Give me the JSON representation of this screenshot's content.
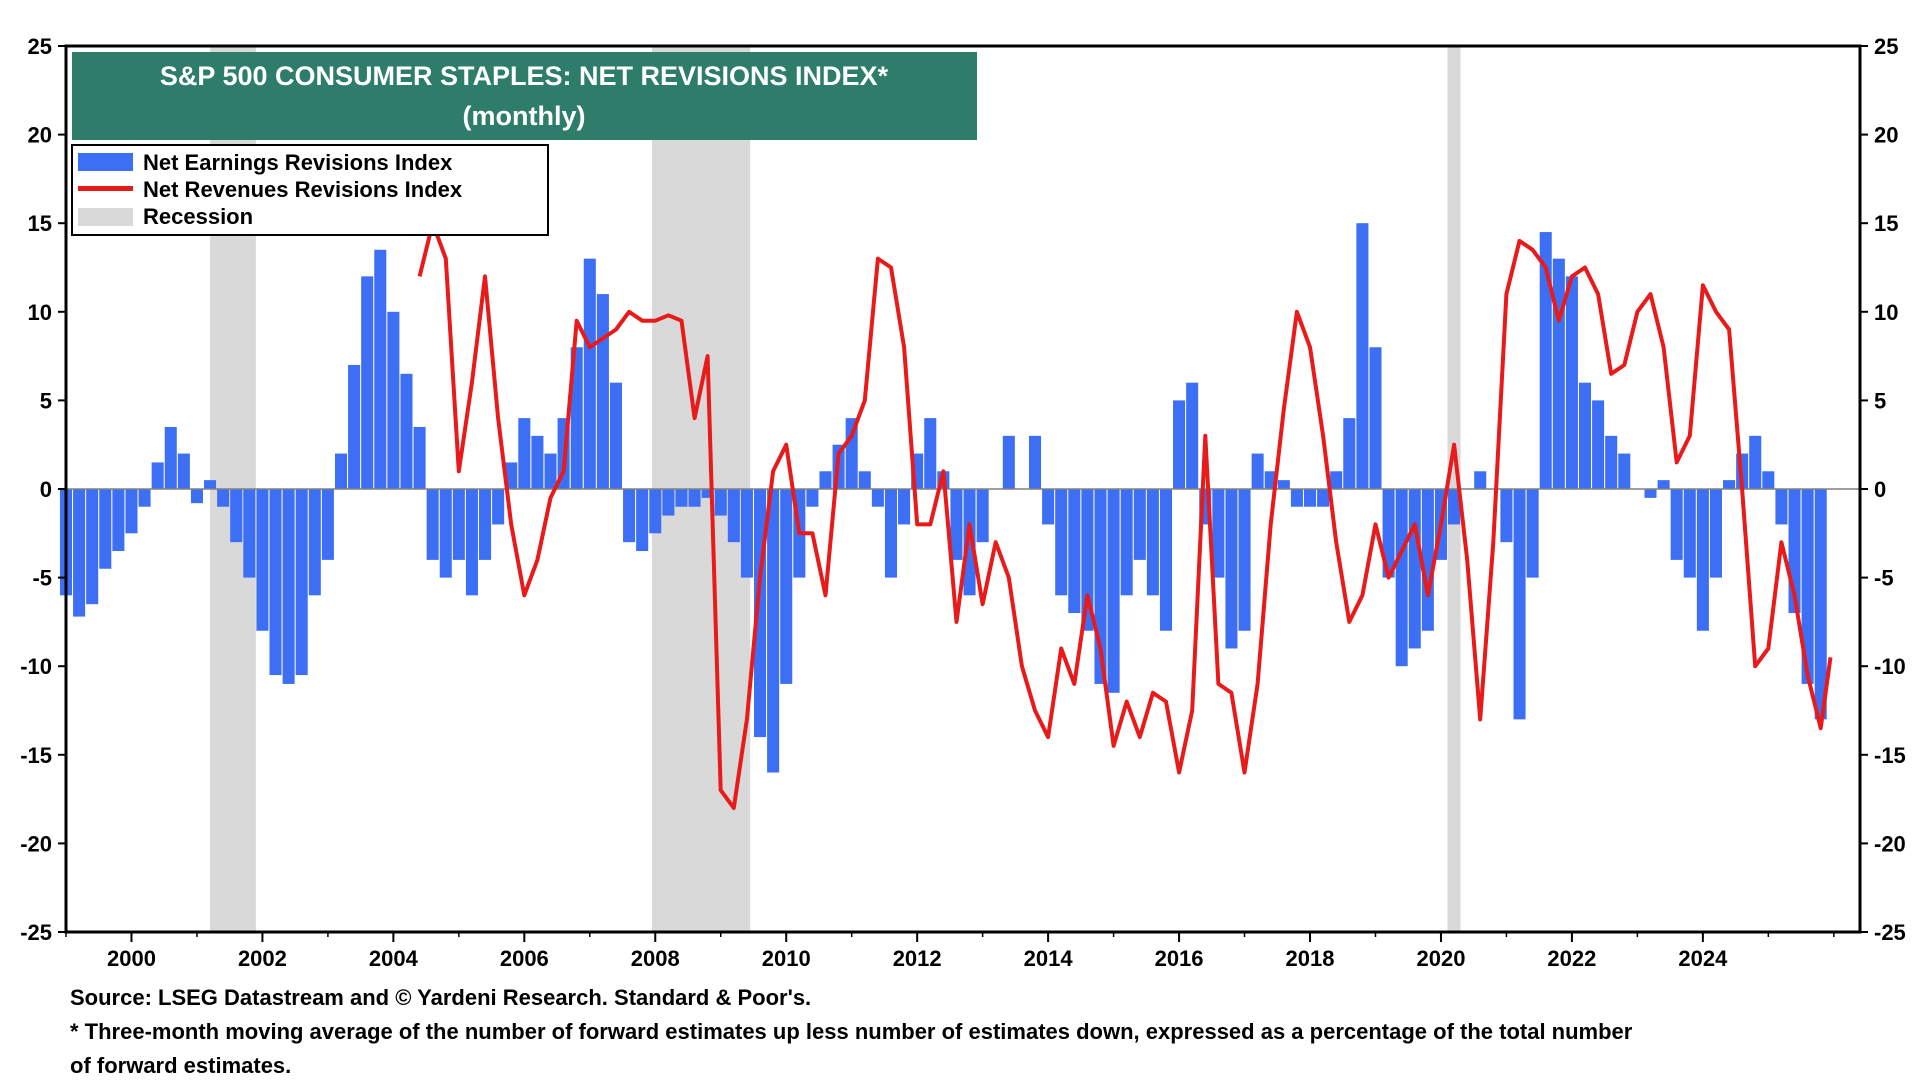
{
  "chart_data": {
    "type": "bar+line",
    "title": "S&P 500 CONSUMER STAPLES: NET REVISIONS INDEX*",
    "subtitle": "(monthly)",
    "ylim": [
      -25,
      25
    ],
    "yticks": [
      -25,
      -20,
      -15,
      -10,
      -5,
      0,
      5,
      10,
      15,
      20,
      25
    ],
    "xlim": [
      1999.0,
      2026.4
    ],
    "xticks": [
      2000,
      2002,
      2004,
      2006,
      2008,
      2010,
      2012,
      2014,
      2016,
      2018,
      2020,
      2022,
      2024
    ],
    "legend_position": "top-left",
    "legend": [
      {
        "label": "Net Earnings Revisions Index",
        "kind": "bar",
        "color": "#3d6ff5"
      },
      {
        "label": "Net Revenues Revisions Index",
        "kind": "line",
        "color": "#e81a1a"
      },
      {
        "label": "Recession",
        "kind": "band",
        "color": "#d9d9d9"
      }
    ],
    "recessions": [
      [
        2001.2,
        2001.9
      ],
      [
        2007.95,
        2009.45
      ],
      [
        2020.1,
        2020.3
      ]
    ],
    "series": [
      {
        "name": "Net Earnings Revisions Index",
        "kind": "bar",
        "color": "#3d6ff5",
        "points": [
          [
            1999.0,
            -6
          ],
          [
            1999.2,
            -7.2
          ],
          [
            1999.4,
            -6.5
          ],
          [
            1999.6,
            -4.5
          ],
          [
            1999.8,
            -3.5
          ],
          [
            2000.0,
            -2.5
          ],
          [
            2000.2,
            -1
          ],
          [
            2000.4,
            1.5
          ],
          [
            2000.6,
            3.5
          ],
          [
            2000.8,
            2
          ],
          [
            2001.0,
            -0.8
          ],
          [
            2001.2,
            0.5
          ],
          [
            2001.4,
            -1
          ],
          [
            2001.6,
            -3
          ],
          [
            2001.8,
            -5
          ],
          [
            2002.0,
            -8
          ],
          [
            2002.2,
            -10.5
          ],
          [
            2002.4,
            -11
          ],
          [
            2002.6,
            -10.5
          ],
          [
            2002.8,
            -6
          ],
          [
            2003.0,
            -4
          ],
          [
            2003.2,
            2
          ],
          [
            2003.4,
            7
          ],
          [
            2003.6,
            12
          ],
          [
            2003.8,
            13.5
          ],
          [
            2004.0,
            10
          ],
          [
            2004.2,
            6.5
          ],
          [
            2004.4,
            3.5
          ],
          [
            2004.6,
            -4
          ],
          [
            2004.8,
            -5
          ],
          [
            2005.0,
            -4
          ],
          [
            2005.2,
            -6
          ],
          [
            2005.4,
            -4
          ],
          [
            2005.6,
            -2
          ],
          [
            2005.8,
            1.5
          ],
          [
            2006.0,
            4
          ],
          [
            2006.2,
            3
          ],
          [
            2006.4,
            2
          ],
          [
            2006.6,
            4
          ],
          [
            2006.8,
            8
          ],
          [
            2007.0,
            13
          ],
          [
            2007.2,
            11
          ],
          [
            2007.4,
            6
          ],
          [
            2007.6,
            -3
          ],
          [
            2007.8,
            -3.5
          ],
          [
            2008.0,
            -2.5
          ],
          [
            2008.2,
            -1.5
          ],
          [
            2008.4,
            -1
          ],
          [
            2008.6,
            -1
          ],
          [
            2008.8,
            -0.5
          ],
          [
            2009.0,
            -1.5
          ],
          [
            2009.2,
            -3
          ],
          [
            2009.4,
            -5
          ],
          [
            2009.6,
            -14
          ],
          [
            2009.8,
            -16
          ],
          [
            2010.0,
            -11
          ],
          [
            2010.2,
            -5
          ],
          [
            2010.4,
            -1
          ],
          [
            2010.6,
            1
          ],
          [
            2010.8,
            2.5
          ],
          [
            2011.0,
            4
          ],
          [
            2011.2,
            1
          ],
          [
            2011.4,
            -1
          ],
          [
            2011.6,
            -5
          ],
          [
            2011.8,
            -2
          ],
          [
            2012.0,
            2
          ],
          [
            2012.2,
            4
          ],
          [
            2012.4,
            1
          ],
          [
            2012.6,
            -4
          ],
          [
            2012.8,
            -6
          ],
          [
            2013.0,
            -3
          ],
          [
            2013.2,
            0
          ],
          [
            2013.4,
            3
          ],
          [
            2013.6,
            0
          ],
          [
            2013.8,
            3
          ],
          [
            2014.0,
            -2
          ],
          [
            2014.2,
            -6
          ],
          [
            2014.4,
            -7
          ],
          [
            2014.6,
            -8
          ],
          [
            2014.8,
            -11
          ],
          [
            2015.0,
            -11.5
          ],
          [
            2015.2,
            -6
          ],
          [
            2015.4,
            -4
          ],
          [
            2015.6,
            -6
          ],
          [
            2015.8,
            -8
          ],
          [
            2016.0,
            5
          ],
          [
            2016.2,
            6
          ],
          [
            2016.4,
            -2
          ],
          [
            2016.6,
            -5
          ],
          [
            2016.8,
            -9
          ],
          [
            2017.0,
            -8
          ],
          [
            2017.2,
            2
          ],
          [
            2017.4,
            1
          ],
          [
            2017.6,
            0.5
          ],
          [
            2017.8,
            -1
          ],
          [
            2018.0,
            -1
          ],
          [
            2018.2,
            -1
          ],
          [
            2018.4,
            1
          ],
          [
            2018.6,
            4
          ],
          [
            2018.8,
            15
          ],
          [
            2019.0,
            8
          ],
          [
            2019.2,
            -5
          ],
          [
            2019.4,
            -10
          ],
          [
            2019.6,
            -9
          ],
          [
            2019.8,
            -8
          ],
          [
            2020.0,
            -4
          ],
          [
            2020.2,
            -2
          ],
          [
            2020.4,
            0
          ],
          [
            2020.6,
            1
          ],
          [
            2020.8,
            0
          ],
          [
            2021.0,
            -3
          ],
          [
            2021.2,
            -13
          ],
          [
            2021.4,
            -5
          ],
          [
            2021.6,
            14.5
          ],
          [
            2021.8,
            13
          ],
          [
            2022.0,
            12
          ],
          [
            2022.2,
            6
          ],
          [
            2022.4,
            5
          ],
          [
            2022.6,
            3
          ],
          [
            2022.8,
            2
          ],
          [
            2023.0,
            0
          ],
          [
            2023.2,
            -0.5
          ],
          [
            2023.4,
            0.5
          ],
          [
            2023.6,
            -4
          ],
          [
            2023.8,
            -5
          ],
          [
            2024.0,
            -8
          ],
          [
            2024.2,
            -5
          ],
          [
            2024.4,
            0.5
          ],
          [
            2024.6,
            2
          ],
          [
            2024.8,
            3
          ],
          [
            2025.0,
            1
          ],
          [
            2025.2,
            -2
          ],
          [
            2025.4,
            -7
          ],
          [
            2025.6,
            -11
          ],
          [
            2025.8,
            -13
          ]
        ]
      },
      {
        "name": "Net Revenues Revisions Index",
        "kind": "line",
        "color": "#e81a1a",
        "points": [
          [
            2004.4,
            12
          ],
          [
            2004.6,
            15
          ],
          [
            2004.8,
            13
          ],
          [
            2005.0,
            1
          ],
          [
            2005.2,
            6
          ],
          [
            2005.4,
            12
          ],
          [
            2005.6,
            4
          ],
          [
            2005.8,
            -2
          ],
          [
            2006.0,
            -6
          ],
          [
            2006.2,
            -4
          ],
          [
            2006.4,
            -0.5
          ],
          [
            2006.6,
            1
          ],
          [
            2006.8,
            9.5
          ],
          [
            2007.0,
            8
          ],
          [
            2007.2,
            8.5
          ],
          [
            2007.4,
            9
          ],
          [
            2007.6,
            10
          ],
          [
            2007.8,
            9.5
          ],
          [
            2008.0,
            9.5
          ],
          [
            2008.2,
            9.8
          ],
          [
            2008.4,
            9.5
          ],
          [
            2008.6,
            4
          ],
          [
            2008.8,
            7.5
          ],
          [
            2009.0,
            -17
          ],
          [
            2009.2,
            -18
          ],
          [
            2009.4,
            -13
          ],
          [
            2009.6,
            -5
          ],
          [
            2009.8,
            1
          ],
          [
            2010.0,
            2.5
          ],
          [
            2010.2,
            -2.5
          ],
          [
            2010.4,
            -2.5
          ],
          [
            2010.6,
            -6
          ],
          [
            2010.8,
            2
          ],
          [
            2011.0,
            3
          ],
          [
            2011.2,
            5
          ],
          [
            2011.4,
            13
          ],
          [
            2011.6,
            12.5
          ],
          [
            2011.8,
            8
          ],
          [
            2012.0,
            -2
          ],
          [
            2012.2,
            -2
          ],
          [
            2012.4,
            1
          ],
          [
            2012.6,
            -7.5
          ],
          [
            2012.8,
            -2
          ],
          [
            2013.0,
            -6.5
          ],
          [
            2013.2,
            -3
          ],
          [
            2013.4,
            -5
          ],
          [
            2013.6,
            -10
          ],
          [
            2013.8,
            -12.5
          ],
          [
            2014.0,
            -14
          ],
          [
            2014.2,
            -9
          ],
          [
            2014.4,
            -11
          ],
          [
            2014.6,
            -6
          ],
          [
            2014.8,
            -9
          ],
          [
            2015.0,
            -14.5
          ],
          [
            2015.2,
            -12
          ],
          [
            2015.4,
            -14
          ],
          [
            2015.6,
            -11.5
          ],
          [
            2015.8,
            -12
          ],
          [
            2016.0,
            -16
          ],
          [
            2016.2,
            -12.5
          ],
          [
            2016.4,
            3
          ],
          [
            2016.6,
            -11
          ],
          [
            2016.8,
            -11.5
          ],
          [
            2017.0,
            -16
          ],
          [
            2017.2,
            -11
          ],
          [
            2017.4,
            -2
          ],
          [
            2017.6,
            4.5
          ],
          [
            2017.8,
            10
          ],
          [
            2018.0,
            8
          ],
          [
            2018.2,
            3
          ],
          [
            2018.4,
            -3
          ],
          [
            2018.6,
            -7.5
          ],
          [
            2018.8,
            -6
          ],
          [
            2019.0,
            -2
          ],
          [
            2019.2,
            -5
          ],
          [
            2019.4,
            -3.5
          ],
          [
            2019.6,
            -2
          ],
          [
            2019.8,
            -6
          ],
          [
            2020.0,
            -2
          ],
          [
            2020.2,
            2.5
          ],
          [
            2020.4,
            -4
          ],
          [
            2020.6,
            -13
          ],
          [
            2020.8,
            -3
          ],
          [
            2021.0,
            11
          ],
          [
            2021.2,
            14
          ],
          [
            2021.4,
            13.5
          ],
          [
            2021.6,
            12.5
          ],
          [
            2021.8,
            9.5
          ],
          [
            2022.0,
            12
          ],
          [
            2022.2,
            12.5
          ],
          [
            2022.4,
            11
          ],
          [
            2022.6,
            6.5
          ],
          [
            2022.8,
            7
          ],
          [
            2023.0,
            10
          ],
          [
            2023.2,
            11
          ],
          [
            2023.4,
            8
          ],
          [
            2023.6,
            1.5
          ],
          [
            2023.8,
            3
          ],
          [
            2024.0,
            11.5
          ],
          [
            2024.2,
            10
          ],
          [
            2024.4,
            9
          ],
          [
            2024.6,
            0
          ],
          [
            2024.8,
            -10
          ],
          [
            2025.0,
            -9
          ],
          [
            2025.2,
            -3
          ],
          [
            2025.4,
            -6
          ],
          [
            2025.6,
            -10.5
          ],
          [
            2025.8,
            -13.5
          ],
          [
            2025.95,
            -9.5
          ]
        ]
      }
    ]
  },
  "footnotes": {
    "source": "Source: LSEG Datastream and © Yardeni Research. Standard & Poor's.",
    "note_line1": "* Three-month moving average of the number of forward estimates up less number of estimates down, expressed as a percentage of the total number",
    "note_line2": " of forward estimates."
  }
}
